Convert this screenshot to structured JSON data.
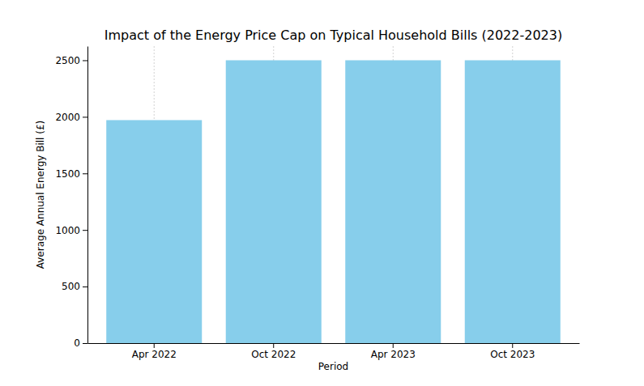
{
  "chart_data": {
    "type": "bar",
    "title": "Impact of the Energy Price Cap on Typical Household Bills (2022-2023)",
    "x_label": "Period",
    "y_label": "Average Annual Energy Bill (£)",
    "categories": [
      "Apr 2022",
      "Oct 2022",
      "Apr 2023",
      "Oct 2023"
    ],
    "values": [
      1971,
      2500,
      2500,
      2500
    ],
    "color": "#87ceeb",
    "ylim": [
      0,
      2625
    ],
    "yticks": [
      0,
      500,
      1000,
      1500,
      2000,
      2500
    ],
    "grid": true
  }
}
